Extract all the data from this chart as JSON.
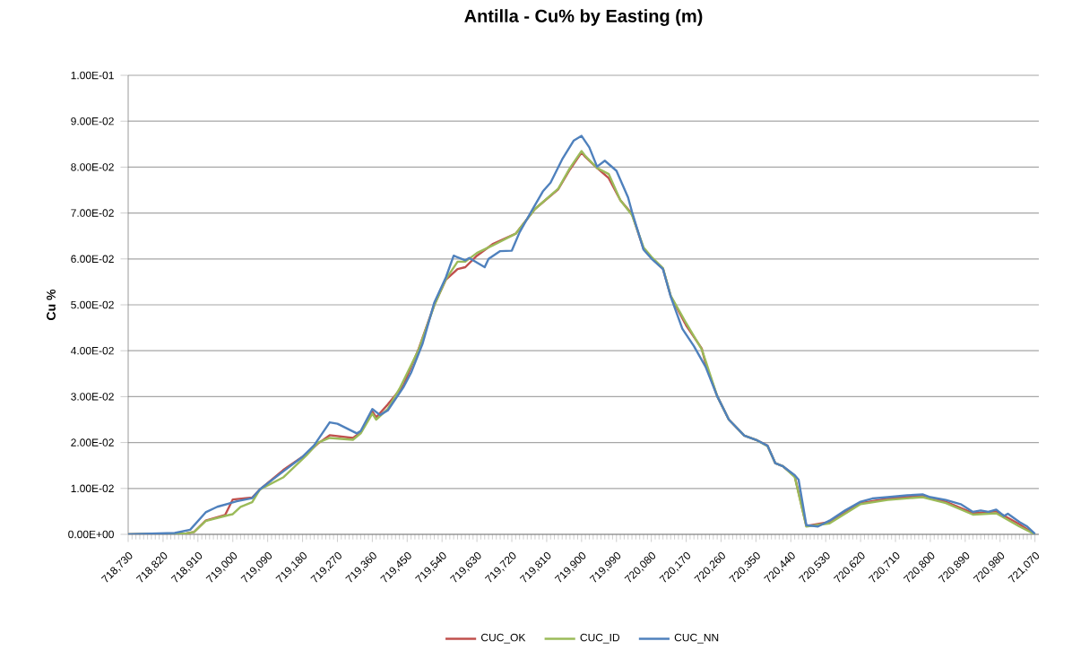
{
  "chart_data": {
    "type": "line",
    "title": "Antilla - Cu% by Easting (m)",
    "ylabel": "Cu %",
    "grid": "y",
    "legend": "bottom",
    "xlim": [
      718730,
      721080
    ],
    "xticks": [
      {
        "value": 718730,
        "label": "718,730"
      },
      {
        "value": 718820,
        "label": "718,820"
      },
      {
        "value": 718910,
        "label": "718,910"
      },
      {
        "value": 719000,
        "label": "719,000"
      },
      {
        "value": 719090,
        "label": "719,090"
      },
      {
        "value": 719180,
        "label": "719,180"
      },
      {
        "value": 719270,
        "label": "719,270"
      },
      {
        "value": 719360,
        "label": "719,360"
      },
      {
        "value": 719450,
        "label": "719,450"
      },
      {
        "value": 719540,
        "label": "719,540"
      },
      {
        "value": 719630,
        "label": "719,630"
      },
      {
        "value": 719720,
        "label": "719,720"
      },
      {
        "value": 719810,
        "label": "719,810"
      },
      {
        "value": 719900,
        "label": "719,900"
      },
      {
        "value": 719990,
        "label": "719,990"
      },
      {
        "value": 720080,
        "label": "720,080"
      },
      {
        "value": 720170,
        "label": "720,170"
      },
      {
        "value": 720260,
        "label": "720,260"
      },
      {
        "value": 720350,
        "label": "720,350"
      },
      {
        "value": 720440,
        "label": "720,440"
      },
      {
        "value": 720530,
        "label": "720,530"
      },
      {
        "value": 720620,
        "label": "720,620"
      },
      {
        "value": 720710,
        "label": "720,710"
      },
      {
        "value": 720800,
        "label": "720,800"
      },
      {
        "value": 720890,
        "label": "720,890"
      },
      {
        "value": 720980,
        "label": "720,980"
      },
      {
        "value": 721070,
        "label": "721,070"
      }
    ],
    "ylim": [
      0,
      0.1
    ],
    "yticks": [
      {
        "value": 0,
        "label": "0.00E+00"
      },
      {
        "value": 0.01,
        "label": "1.00E-02"
      },
      {
        "value": 0.02,
        "label": "2.00E-02"
      },
      {
        "value": 0.03,
        "label": "3.00E-02"
      },
      {
        "value": 0.04,
        "label": "4.00E-02"
      },
      {
        "value": 0.05,
        "label": "5.00E-02"
      },
      {
        "value": 0.06,
        "label": "6.00E-02"
      },
      {
        "value": 0.07,
        "label": "7.00E-02"
      },
      {
        "value": 0.08,
        "label": "8.00E-02"
      },
      {
        "value": 0.09,
        "label": "9.00E-02"
      },
      {
        "value": 0.1,
        "label": "1.00E-01"
      }
    ],
    "series": [
      {
        "name": "CUC_OK",
        "color": "#c0504d",
        "x": [
          718730,
          718880,
          718900,
          718930,
          718980,
          719000,
          719050,
          719070,
          719130,
          719190,
          719220,
          719250,
          719310,
          719330,
          719360,
          719370,
          719400,
          719440,
          719480,
          719520,
          719550,
          719580,
          719600,
          719630,
          719670,
          719730,
          719780,
          719840,
          719870,
          719900,
          719910,
          719940,
          719970,
          720000,
          720030,
          720060,
          720080,
          720110,
          720130,
          720170,
          720210,
          720220,
          720250,
          720280,
          720320,
          720350,
          720380,
          720400,
          720420,
          720450,
          720480,
          720540,
          720620,
          720690,
          720780,
          720840,
          720910,
          720970,
          721030,
          721070
        ],
        "values": [
          0,
          0.0002,
          0.0005,
          0.003,
          0.0042,
          0.0076,
          0.008,
          0.0098,
          0.014,
          0.0175,
          0.0198,
          0.0216,
          0.021,
          0.0222,
          0.0268,
          0.0255,
          0.0283,
          0.0324,
          0.0405,
          0.05,
          0.0555,
          0.0578,
          0.0582,
          0.0607,
          0.0632,
          0.0655,
          0.0709,
          0.0752,
          0.0795,
          0.0832,
          0.0822,
          0.0798,
          0.0776,
          0.0728,
          0.0698,
          0.0622,
          0.0603,
          0.0579,
          0.0519,
          0.0455,
          0.0405,
          0.0372,
          0.0301,
          0.025,
          0.0215,
          0.0206,
          0.0193,
          0.0155,
          0.0148,
          0.0127,
          0.0018,
          0.0027,
          0.0068,
          0.0078,
          0.0084,
          0.0071,
          0.0046,
          0.005,
          0.0022,
          0
        ]
      },
      {
        "name": "CUC_ID",
        "color": "#9bbb59",
        "x": [
          718730,
          718880,
          718900,
          718930,
          718980,
          719000,
          719020,
          719050,
          719070,
          719130,
          719190,
          719220,
          719250,
          719310,
          719330,
          719360,
          719370,
          719400,
          719430,
          719480,
          719520,
          719550,
          719580,
          719600,
          719630,
          719670,
          719730,
          719780,
          719840,
          719870,
          719900,
          719910,
          719940,
          719970,
          720000,
          720030,
          720060,
          720080,
          720110,
          720130,
          720170,
          720210,
          720220,
          720250,
          720280,
          720320,
          720350,
          720380,
          720400,
          720420,
          720450,
          720480,
          720540,
          720620,
          720690,
          720780,
          720840,
          720910,
          720970,
          721030,
          721070
        ],
        "values": [
          0,
          0.0002,
          0.0005,
          0.0029,
          0.004,
          0.0044,
          0.006,
          0.007,
          0.0098,
          0.0124,
          0.0172,
          0.02,
          0.021,
          0.0206,
          0.022,
          0.0263,
          0.025,
          0.0273,
          0.0317,
          0.0403,
          0.0499,
          0.0556,
          0.0594,
          0.0594,
          0.0613,
          0.0629,
          0.0655,
          0.0709,
          0.0753,
          0.0798,
          0.0835,
          0.0824,
          0.0798,
          0.0785,
          0.0728,
          0.0696,
          0.0625,
          0.0605,
          0.058,
          0.052,
          0.046,
          0.0403,
          0.0378,
          0.0301,
          0.025,
          0.0215,
          0.0206,
          0.0192,
          0.0155,
          0.0148,
          0.0125,
          0.0017,
          0.0024,
          0.0066,
          0.0075,
          0.0081,
          0.0068,
          0.0043,
          0.0046,
          0.0017,
          0
        ]
      },
      {
        "name": "CUC_NN",
        "color": "#4f81bd",
        "x": [
          718730,
          718850,
          718890,
          718930,
          718960,
          719010,
          719050,
          719070,
          719130,
          719180,
          719210,
          719250,
          719270,
          719320,
          719330,
          719360,
          719380,
          719400,
          719440,
          719460,
          719490,
          719520,
          719550,
          719570,
          719600,
          719610,
          719650,
          719660,
          719690,
          719720,
          719740,
          719770,
          719800,
          719820,
          719850,
          719880,
          719900,
          719920,
          719940,
          719960,
          719990,
          720020,
          720030,
          720060,
          720080,
          720110,
          720130,
          720160,
          720190,
          720220,
          720250,
          720280,
          720320,
          720350,
          720380,
          720400,
          720420,
          720450,
          720460,
          720480,
          720510,
          720540,
          720580,
          720620,
          720650,
          720690,
          720740,
          720780,
          720800,
          720840,
          720880,
          720910,
          720930,
          720950,
          720970,
          720990,
          721000,
          721030,
          721050,
          721070
        ],
        "values": [
          0,
          0.0003,
          0.001,
          0.0048,
          0.006,
          0.0072,
          0.0079,
          0.0098,
          0.0137,
          0.0169,
          0.0194,
          0.0244,
          0.0241,
          0.022,
          0.0225,
          0.0273,
          0.026,
          0.027,
          0.032,
          0.0352,
          0.0416,
          0.0505,
          0.056,
          0.0607,
          0.0597,
          0.0602,
          0.0582,
          0.06,
          0.0617,
          0.0618,
          0.0658,
          0.0703,
          0.0747,
          0.0766,
          0.0817,
          0.0858,
          0.0868,
          0.0843,
          0.0801,
          0.0814,
          0.0792,
          0.0734,
          0.0703,
          0.062,
          0.0601,
          0.0578,
          0.0518,
          0.0448,
          0.041,
          0.0365,
          0.0301,
          0.025,
          0.0215,
          0.0206,
          0.0193,
          0.0155,
          0.0148,
          0.0129,
          0.0119,
          0.002,
          0.0017,
          0.003,
          0.0052,
          0.0071,
          0.0078,
          0.0081,
          0.0085,
          0.0087,
          0.0081,
          0.0075,
          0.0065,
          0.0049,
          0.0052,
          0.0049,
          0.0054,
          0.004,
          0.0045,
          0.0027,
          0.0017,
          0.0001
        ]
      }
    ]
  }
}
